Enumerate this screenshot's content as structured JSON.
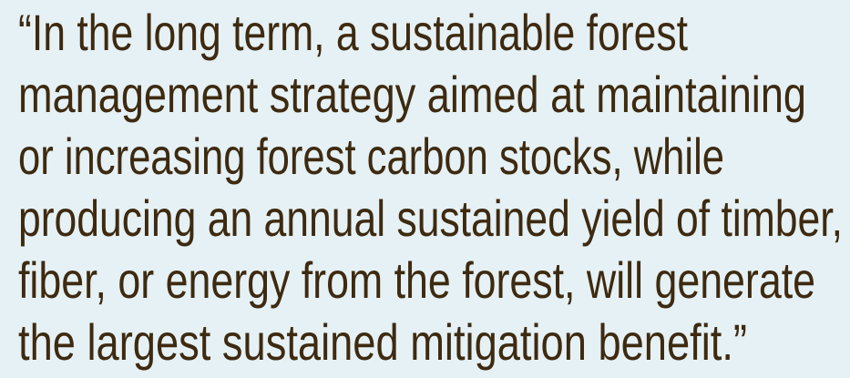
{
  "quote": {
    "lines": [
      "“In the long term, a sustainable forest",
      "management strategy aimed at maintaining",
      "or increasing forest carbon stocks, while",
      "producing an annual sustained yield of timber,",
      "fiber, or energy from the forest, will generate",
      "the largest sustained mitigation benefit.”"
    ]
  }
}
